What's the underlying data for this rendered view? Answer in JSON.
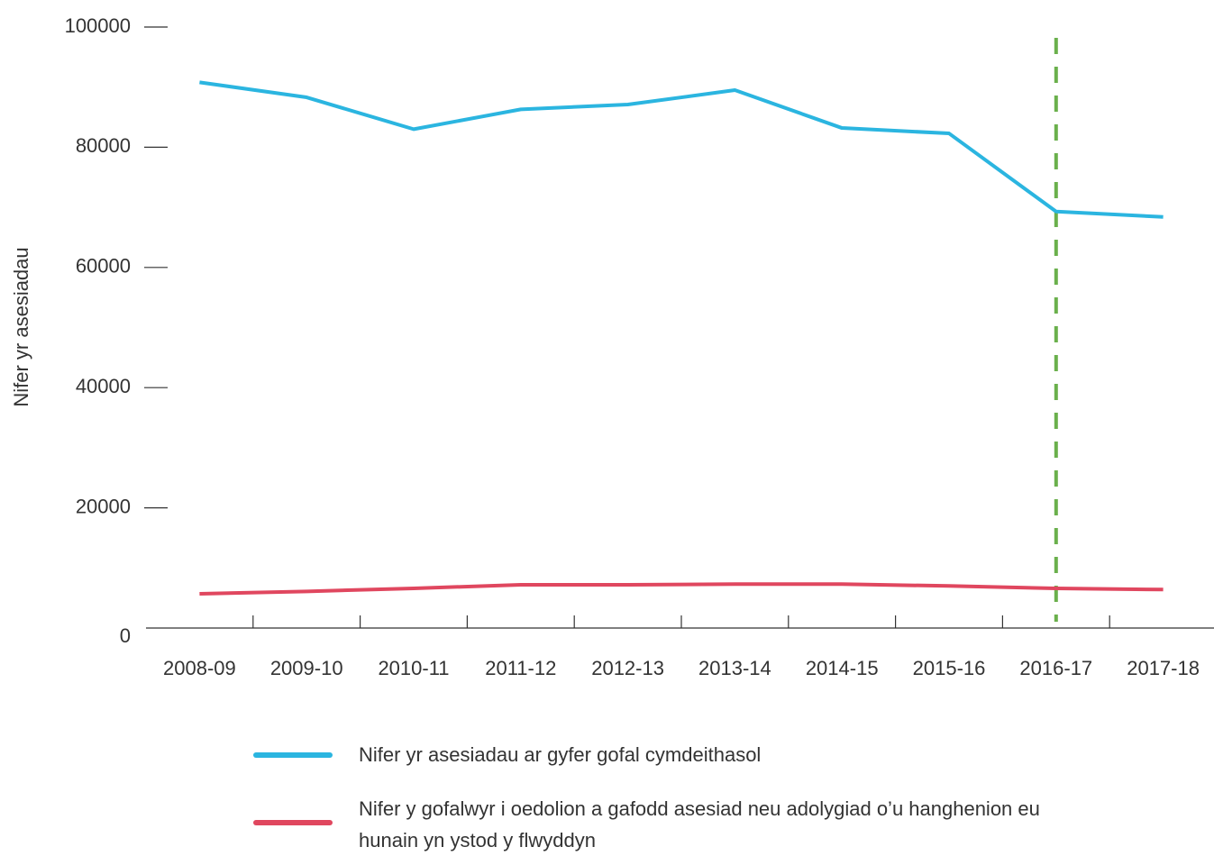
{
  "chart_data": {
    "type": "line",
    "y_label": "Nifer yr asesiadau",
    "categories": [
      "2008-09",
      "2009-10",
      "2010-11",
      "2011-12",
      "2012-13",
      "2013-14",
      "2014-15",
      "2015-16",
      "2016-17",
      "2017-18"
    ],
    "series": [
      {
        "name": "Nifer yr asesiadau ar gyfer gofal cymdeithasol",
        "color": "#2bb5e0",
        "values": [
          90800,
          88300,
          83000,
          86300,
          87100,
          89500,
          83200,
          82300,
          69300,
          68400
        ]
      },
      {
        "name": "Nifer y gofalwyr i oedolion a gafodd asesiad neu adolygiad o’u hanghenion eu hunain yn ystod y flwyddyn",
        "color": "#e0475f",
        "values": [
          5700,
          6100,
          6600,
          7200,
          7200,
          7300,
          7300,
          7000,
          6600,
          6400
        ]
      }
    ],
    "ylim": [
      0,
      100000
    ],
    "yticks": [
      0,
      20000,
      40000,
      60000,
      80000,
      100000
    ],
    "vline": {
      "x": "2016-17",
      "color": "#6ab04c",
      "style": "dashed"
    }
  }
}
